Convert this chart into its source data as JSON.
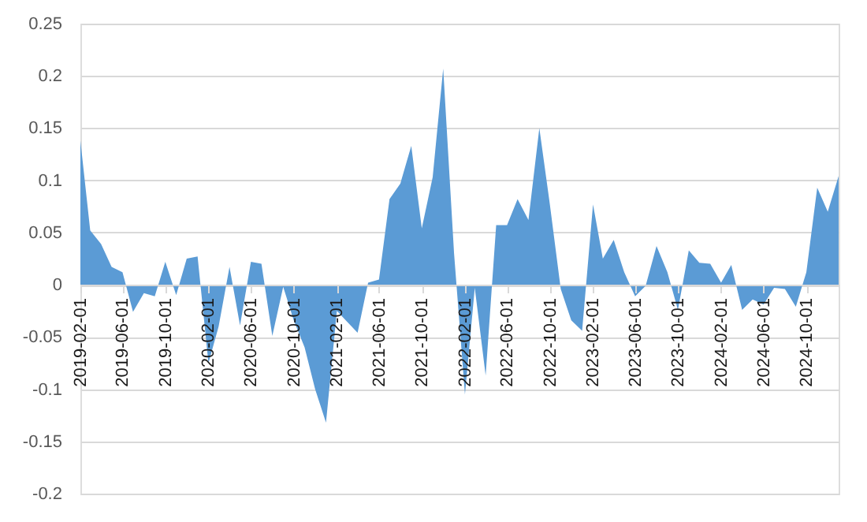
{
  "chart_data": {
    "type": "area",
    "x": [
      "2019-02-01",
      "2019-03-01",
      "2019-04-01",
      "2019-05-01",
      "2019-06-01",
      "2019-07-01",
      "2019-08-01",
      "2019-09-01",
      "2019-10-01",
      "2019-11-01",
      "2019-12-01",
      "2020-01-01",
      "2020-02-01",
      "2020-03-01",
      "2020-04-01",
      "2020-05-01",
      "2020-06-01",
      "2020-07-01",
      "2020-08-01",
      "2020-09-01",
      "2020-10-01",
      "2020-11-01",
      "2020-12-01",
      "2021-01-01",
      "2021-02-01",
      "2021-03-01",
      "2021-04-01",
      "2021-05-01",
      "2021-06-01",
      "2021-07-01",
      "2021-08-01",
      "2021-09-01",
      "2021-10-01",
      "2021-11-01",
      "2021-12-01",
      "2022-01-01",
      "2022-02-01",
      "2022-03-01",
      "2022-04-01",
      "2022-05-01",
      "2022-06-01",
      "2022-07-01",
      "2022-08-01",
      "2022-09-01",
      "2022-10-01",
      "2022-11-01",
      "2022-12-01",
      "2023-01-01",
      "2023-02-01",
      "2023-03-01",
      "2023-04-01",
      "2023-05-01",
      "2023-06-01",
      "2023-07-01",
      "2023-08-01",
      "2023-09-01",
      "2023-10-01",
      "2023-11-01",
      "2023-12-01",
      "2024-01-01",
      "2024-02-01",
      "2024-03-01",
      "2024-04-01",
      "2024-05-01",
      "2024-06-01",
      "2024-07-01",
      "2024-08-01",
      "2024-09-01",
      "2024-10-01",
      "2024-11-01",
      "2024-12-01",
      "2025-01-01"
    ],
    "series": [
      {
        "color": "#5b9bd5",
        "values": [
          0.138,
          0.052,
          0.039,
          0.017,
          0.012,
          -0.026,
          -0.008,
          -0.011,
          0.022,
          -0.01,
          0.025,
          0.027,
          -0.075,
          -0.04,
          0.017,
          -0.039,
          0.022,
          0.02,
          -0.049,
          -0.002,
          -0.034,
          -0.06,
          -0.1,
          -0.132,
          -0.025,
          -0.035,
          -0.046,
          0.002,
          0.005,
          0.082,
          0.097,
          0.133,
          0.054,
          0.103,
          0.207,
          0.03,
          -0.105,
          -0.003,
          -0.087,
          0.057,
          0.057,
          0.082,
          0.062,
          0.15,
          0.077,
          -0.004,
          -0.034,
          -0.044,
          0.077,
          0.025,
          0.043,
          0.012,
          -0.011,
          -0.001,
          0.037,
          0.012,
          -0.024,
          0.033,
          0.021,
          0.02,
          0.002,
          0.019,
          -0.024,
          -0.014,
          -0.019,
          -0.003,
          -0.004,
          -0.021,
          0.012,
          0.093,
          0.07,
          0.104
        ]
      }
    ],
    "xlim": [
      "2019-02-01",
      "2025-01-01"
    ],
    "xticks": [
      "2019-02-01",
      "2019-06-01",
      "2019-10-01",
      "2020-02-01",
      "2020-06-01",
      "2020-10-01",
      "2021-02-01",
      "2021-06-01",
      "2021-10-01",
      "2022-02-01",
      "2022-06-01",
      "2022-10-01",
      "2023-02-01",
      "2023-06-01",
      "2023-10-01",
      "2024-02-01",
      "2024-06-01",
      "2024-10-01"
    ],
    "ylim": [
      -0.2,
      0.25
    ],
    "yticks": [
      -0.2,
      -0.15,
      -0.1,
      -0.05,
      0,
      0.05,
      0.1,
      0.15,
      0.2,
      0.25
    ],
    "grid": "y"
  }
}
